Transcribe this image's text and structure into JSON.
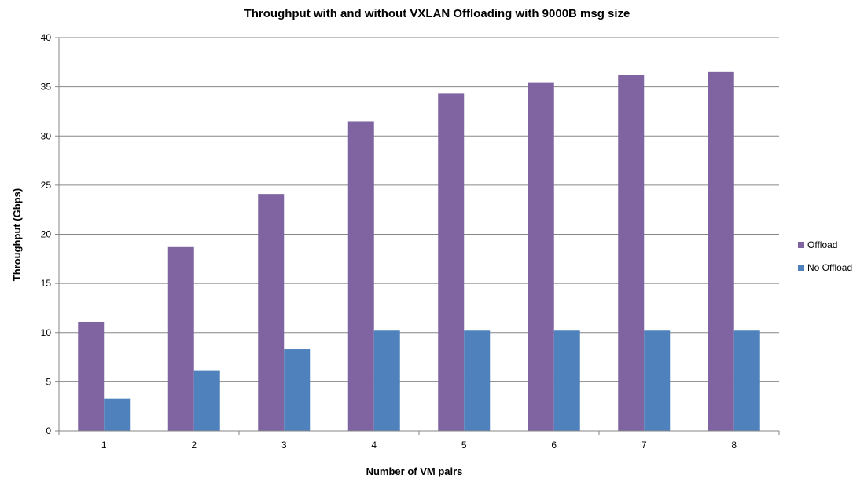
{
  "chart_data": {
    "type": "bar",
    "title": "Throughput with and without VXLAN Offloading with 9000B msg size",
    "xlabel": "Number of VM pairs",
    "ylabel": "Throughput (Gbps)",
    "categories": [
      "1",
      "2",
      "3",
      "4",
      "5",
      "6",
      "7",
      "8"
    ],
    "ylim": [
      0,
      40
    ],
    "yticks": [
      0,
      5,
      10,
      15,
      20,
      25,
      30,
      35,
      40
    ],
    "grid": true,
    "legend_position": "right",
    "series": [
      {
        "name": "Offload",
        "color": "#8064a2",
        "values": [
          11.1,
          18.7,
          24.1,
          31.5,
          34.3,
          35.4,
          36.2,
          36.5
        ]
      },
      {
        "name": "No Offload",
        "color": "#4f81bd",
        "values": [
          3.3,
          6.1,
          8.3,
          10.2,
          10.2,
          10.2,
          10.2,
          10.2
        ]
      }
    ]
  }
}
